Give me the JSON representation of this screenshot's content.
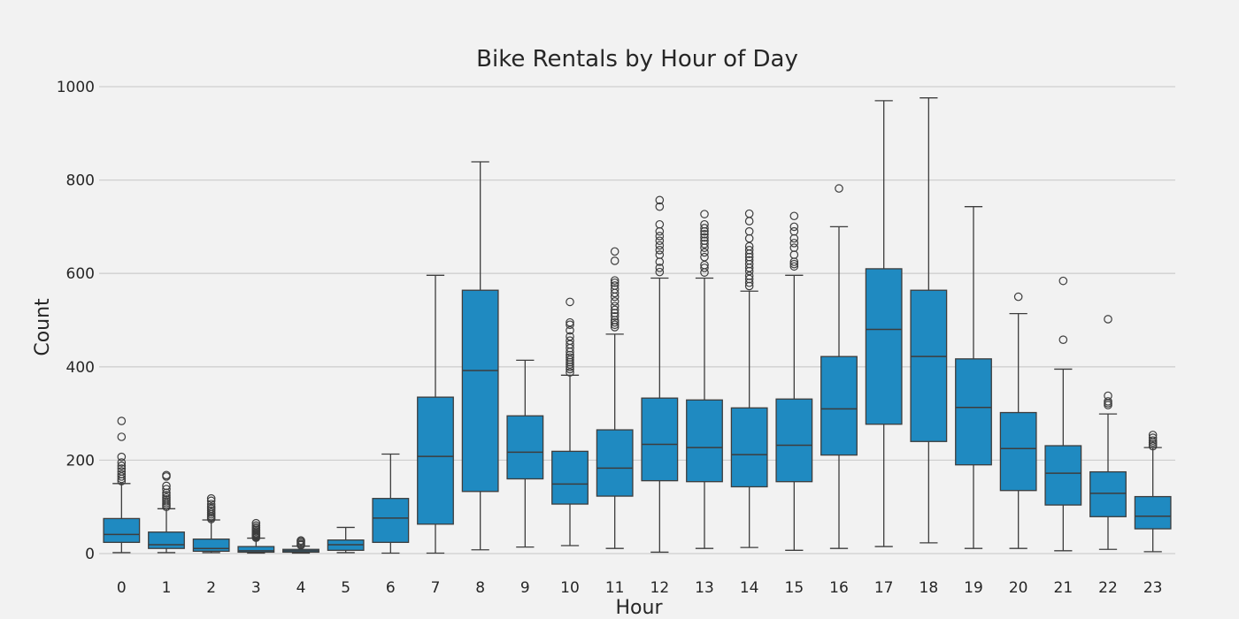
{
  "chart_data": {
    "type": "box",
    "title": "Bike Rentals by Hour of Day",
    "xlabel": "Hour",
    "ylabel": "Count",
    "ylim": [
      0,
      1000
    ],
    "yticks": [
      0,
      200,
      400,
      600,
      800,
      1000
    ],
    "grid": "horizontal",
    "color": "#1f8ac1",
    "line_color": "#3d3d3d",
    "background": "#f2f2f2",
    "categories": [
      "0",
      "1",
      "2",
      "3",
      "4",
      "5",
      "6",
      "7",
      "8",
      "9",
      "10",
      "11",
      "12",
      "13",
      "14",
      "15",
      "16",
      "17",
      "18",
      "19",
      "20",
      "21",
      "22",
      "23"
    ],
    "boxes": [
      {
        "hour": "0",
        "whisker_low": 2,
        "q1": 24,
        "median": 41,
        "q3": 75,
        "whisker_high": 150,
        "outliers": [
          155,
          160,
          165,
          170,
          176,
          182,
          188,
          195,
          207,
          250,
          284
        ]
      },
      {
        "hour": "1",
        "whisker_low": 2,
        "q1": 11,
        "median": 19,
        "q3": 46,
        "whisker_high": 96,
        "outliers": [
          100,
          104,
          108,
          112,
          116,
          120,
          125,
          130,
          138,
          145,
          165,
          168
        ]
      },
      {
        "hour": "2",
        "whisker_low": 2,
        "q1": 5,
        "median": 11,
        "q3": 31,
        "whisker_high": 72,
        "outliers": [
          74,
          77,
          80,
          84,
          88,
          92,
          96,
          100,
          106,
          113,
          118
        ]
      },
      {
        "hour": "3",
        "whisker_low": 1,
        "q1": 3,
        "median": 6,
        "q3": 15,
        "whisker_high": 33,
        "outliers": [
          34,
          36,
          38,
          40,
          42,
          44,
          47,
          50,
          53,
          56,
          60,
          65
        ]
      },
      {
        "hour": "4",
        "whisker_low": 1,
        "q1": 3,
        "median": 6,
        "q3": 9,
        "whisker_high": 16,
        "outliers": [
          18,
          20,
          23,
          26,
          28
        ]
      },
      {
        "hour": "5",
        "whisker_low": 2,
        "q1": 7,
        "median": 19,
        "q3": 29,
        "whisker_high": 56,
        "outliers": []
      },
      {
        "hour": "6",
        "whisker_low": 1,
        "q1": 24,
        "median": 76,
        "q3": 118,
        "whisker_high": 213,
        "outliers": []
      },
      {
        "hour": "7",
        "whisker_low": 1,
        "q1": 63,
        "median": 208,
        "q3": 335,
        "whisker_high": 596,
        "outliers": []
      },
      {
        "hour": "8",
        "whisker_low": 8,
        "q1": 133,
        "median": 392,
        "q3": 564,
        "whisker_high": 839,
        "outliers": []
      },
      {
        "hour": "9",
        "whisker_low": 14,
        "q1": 160,
        "median": 217,
        "q3": 295,
        "whisker_high": 414,
        "outliers": []
      },
      {
        "hour": "10",
        "whisker_low": 17,
        "q1": 106,
        "median": 149,
        "q3": 219,
        "whisker_high": 382,
        "outliers": [
          388,
          395,
          400,
          405,
          410,
          415,
          420,
          425,
          432,
          440,
          448,
          456,
          465,
          478,
          490,
          495,
          539
        ]
      },
      {
        "hour": "11",
        "whisker_low": 11,
        "q1": 123,
        "median": 183,
        "q3": 265,
        "whisker_high": 470,
        "outliers": [
          485,
          490,
          495,
          500,
          508,
          515,
          522,
          530,
          540,
          550,
          558,
          566,
          574,
          580,
          585,
          627,
          647
        ]
      },
      {
        "hour": "12",
        "whisker_low": 3,
        "q1": 156,
        "median": 234,
        "q3": 333,
        "whisker_high": 590,
        "outliers": [
          603,
          612,
          625,
          640,
          650,
          660,
          670,
          680,
          690,
          705,
          743,
          757
        ]
      },
      {
        "hour": "13",
        "whisker_low": 11,
        "q1": 154,
        "median": 227,
        "q3": 329,
        "whisker_high": 590,
        "outliers": [
          602,
          612,
          618,
          635,
          645,
          655,
          663,
          670,
          677,
          684,
          690,
          697,
          705,
          727
        ]
      },
      {
        "hour": "14",
        "whisker_low": 13,
        "q1": 143,
        "median": 212,
        "q3": 312,
        "whisker_high": 562,
        "outliers": [
          573,
          580,
          588,
          595,
          605,
          612,
          620,
          628,
          635,
          642,
          650,
          658,
          675,
          690,
          712,
          728
        ]
      },
      {
        "hour": "15",
        "whisker_low": 7,
        "q1": 154,
        "median": 232,
        "q3": 331,
        "whisker_high": 596,
        "outliers": [
          615,
          620,
          625,
          640,
          655,
          665,
          675,
          690,
          700,
          723
        ]
      },
      {
        "hour": "16",
        "whisker_low": 11,
        "q1": 211,
        "median": 310,
        "q3": 422,
        "whisker_high": 700,
        "outliers": [
          782
        ]
      },
      {
        "hour": "17",
        "whisker_low": 15,
        "q1": 277,
        "median": 480,
        "q3": 610,
        "whisker_high": 970,
        "outliers": []
      },
      {
        "hour": "18",
        "whisker_low": 23,
        "q1": 240,
        "median": 422,
        "q3": 564,
        "whisker_high": 976,
        "outliers": []
      },
      {
        "hour": "19",
        "whisker_low": 11,
        "q1": 190,
        "median": 313,
        "q3": 417,
        "whisker_high": 743,
        "outliers": []
      },
      {
        "hour": "20",
        "whisker_low": 11,
        "q1": 135,
        "median": 225,
        "q3": 302,
        "whisker_high": 514,
        "outliers": [
          550
        ]
      },
      {
        "hour": "21",
        "whisker_low": 6,
        "q1": 104,
        "median": 172,
        "q3": 231,
        "whisker_high": 395,
        "outliers": [
          458,
          584
        ]
      },
      {
        "hour": "22",
        "whisker_low": 9,
        "q1": 79,
        "median": 129,
        "q3": 175,
        "whisker_high": 299,
        "outliers": [
          318,
          322,
          326,
          338,
          502
        ]
      },
      {
        "hour": "23",
        "whisker_low": 4,
        "q1": 53,
        "median": 80,
        "q3": 122,
        "whisker_high": 227,
        "outliers": [
          230,
          234,
          238,
          242,
          248,
          254
        ]
      }
    ]
  }
}
